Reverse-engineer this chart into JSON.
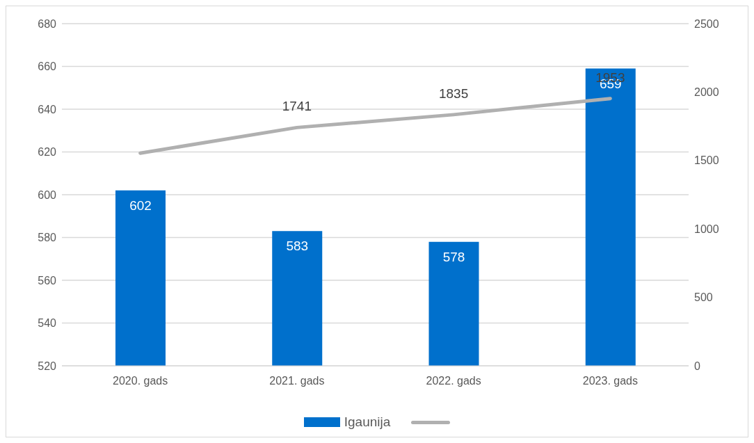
{
  "chart_data": {
    "type": "bar",
    "categories": [
      "2020. gads",
      "2021. gads",
      "2022. gads",
      "2023. gads"
    ],
    "series": [
      {
        "name": "Igaunija",
        "color": "#0070cc",
        "values": [
          602,
          583,
          578,
          659
        ],
        "value_labels": [
          "602",
          "583",
          "578",
          "659"
        ]
      },
      {
        "type": "line",
        "axis": "y2",
        "color": "#b0b0b0",
        "values": [
          1554,
          1741,
          1835,
          1953
        ],
        "value_labels": [
          null,
          "1741",
          "1835",
          "1953"
        ]
      }
    ],
    "ylim": [
      520,
      680
    ],
    "yticks": [
      520,
      540,
      560,
      580,
      600,
      620,
      640,
      660,
      680
    ],
    "y2lim": [
      0,
      2500
    ],
    "y2ticks": [
      0,
      500,
      1000,
      1500,
      2000,
      2500
    ],
    "grid": "y",
    "legend": "bottom"
  }
}
